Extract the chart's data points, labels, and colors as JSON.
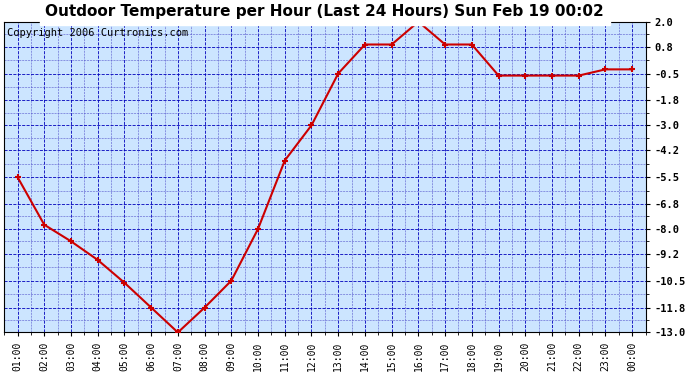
{
  "title": "Outdoor Temperature per Hour (Last 24 Hours) Sun Feb 19 00:02",
  "copyright": "Copyright 2006 Curtronics.com",
  "hours": [
    "01:00",
    "02:00",
    "03:00",
    "04:00",
    "05:00",
    "06:00",
    "07:00",
    "08:00",
    "09:00",
    "10:00",
    "11:00",
    "12:00",
    "13:00",
    "14:00",
    "15:00",
    "16:00",
    "17:00",
    "18:00",
    "19:00",
    "20:00",
    "21:00",
    "22:00",
    "23:00",
    "00:00"
  ],
  "values": [
    -5.5,
    -7.8,
    -8.6,
    -9.5,
    -10.6,
    -11.8,
    -13.0,
    -11.8,
    -10.5,
    -8.0,
    -4.7,
    -3.0,
    -0.5,
    0.9,
    0.9,
    2.0,
    0.9,
    0.9,
    -0.6,
    -0.6,
    -0.6,
    -0.6,
    -0.3,
    -0.3
  ],
  "ylim_min": -13.0,
  "ylim_max": 2.0,
  "yticks": [
    2.0,
    0.8,
    -0.5,
    -1.8,
    -3.0,
    -4.2,
    -5.5,
    -6.8,
    -8.0,
    -9.2,
    -10.5,
    -11.8,
    -13.0
  ],
  "line_color": "#cc0000",
  "marker_color": "#cc0000",
  "fig_bg_color": "#ffffff",
  "plot_bg_color": "#cce5ff",
  "border_color": "#000000",
  "grid_color_major": "#0000bb",
  "grid_color_minor": "#5555cc",
  "title_fontsize": 11,
  "copyright_fontsize": 7.5,
  "tick_fontsize": 7.5,
  "xtick_fontsize": 7
}
